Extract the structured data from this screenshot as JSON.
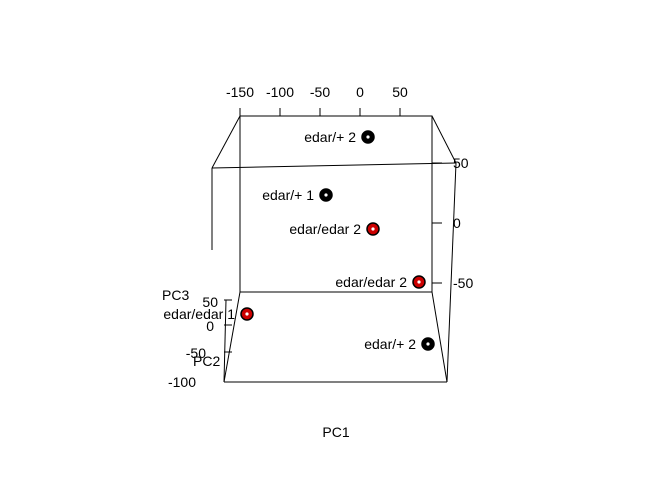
{
  "chart_data": {
    "type": "scatter",
    "projection": "3d",
    "axes": {
      "x": {
        "label": "PC1",
        "ticks": [
          "-150",
          "-100",
          "-50",
          "0",
          "50"
        ]
      },
      "y": {
        "label": "PC2",
        "ticks": [
          "50",
          "0",
          "-50",
          "-100"
        ]
      },
      "z": {
        "label": "PC3",
        "ticks": [
          "50",
          "0",
          "-50"
        ]
      }
    },
    "points": [
      {
        "label": "edar/+ 2",
        "color": "#000000"
      },
      {
        "label": "edar/+ 1",
        "color": "#000000"
      },
      {
        "label": "edar/edar 2",
        "color": "#cc0000"
      },
      {
        "label": "edar/edar 2",
        "color": "#cc0000"
      },
      {
        "label": "edar/edar 1",
        "color": "#cc0000"
      },
      {
        "label": "edar/+ 2",
        "color": "#000000"
      }
    ]
  }
}
